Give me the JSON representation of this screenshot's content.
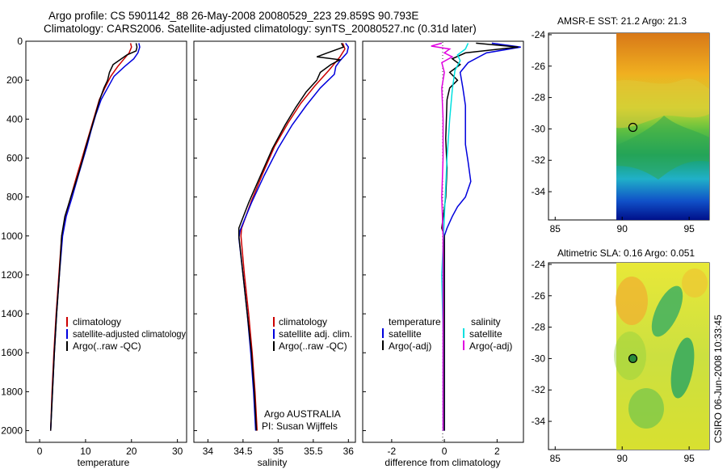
{
  "header": {
    "line1": "Argo profile: CS 5901142_88 26-May-2008 20080529_223 29.859S 90.793E",
    "line2": "Climatology: CARS2006. Satellite-adjusted climatology: synTS_20080527.nc (0.31d later)"
  },
  "colors": {
    "climatology": "#cc0000",
    "satellite": "#0000dd",
    "argo": "#000000",
    "sat_cyan": "#00e0e0",
    "argo_magenta": "#e000e0"
  },
  "chart_data": [
    {
      "id": "temperature",
      "type": "line",
      "xlabel": "temperature",
      "xlim": [
        -3,
        32
      ],
      "ylim": [
        2060,
        0
      ],
      "xticks": [
        0,
        10,
        20,
        30
      ],
      "yticks": [
        0,
        200,
        400,
        600,
        800,
        1000,
        1200,
        1400,
        1600,
        1800,
        2000
      ],
      "legend": [
        "climatology",
        "satellite-adjusted climatology",
        "Argo(..raw -QC)"
      ],
      "series": [
        {
          "name": "climatology",
          "color_key": "climatology",
          "points": [
            [
              19.8,
              10
            ],
            [
              20.0,
              30
            ],
            [
              19.5,
              60
            ],
            [
              18.4,
              90
            ],
            [
              17.0,
              130
            ],
            [
              15.5,
              180
            ],
            [
              14.2,
              240
            ],
            [
              13.0,
              300
            ],
            [
              12.0,
              380
            ],
            [
              11.0,
              460
            ],
            [
              10.0,
              540
            ],
            [
              9.0,
              620
            ],
            [
              8.0,
              700
            ],
            [
              6.8,
              800
            ],
            [
              5.6,
              900
            ],
            [
              4.8,
              1000
            ],
            [
              4.2,
              1200
            ],
            [
              3.6,
              1400
            ],
            [
              3.1,
              1600
            ],
            [
              2.7,
              1800
            ],
            [
              2.4,
              2000
            ]
          ]
        },
        {
          "name": "satellite-adjusted climatology",
          "color_key": "satellite",
          "points": [
            [
              21.6,
              10
            ],
            [
              21.8,
              30
            ],
            [
              21.4,
              60
            ],
            [
              20.5,
              90
            ],
            [
              18.5,
              130
            ],
            [
              16.2,
              180
            ],
            [
              14.8,
              240
            ],
            [
              13.4,
              300
            ],
            [
              12.2,
              380
            ],
            [
              11.2,
              460
            ],
            [
              10.3,
              540
            ],
            [
              9.3,
              620
            ],
            [
              8.3,
              700
            ],
            [
              7.1,
              800
            ],
            [
              5.8,
              900
            ],
            [
              5.0,
              1000
            ],
            [
              4.3,
              1200
            ],
            [
              3.7,
              1400
            ],
            [
              3.2,
              1600
            ],
            [
              2.8,
              1800
            ],
            [
              2.4,
              2000
            ]
          ]
        },
        {
          "name": "Argo(..raw -QC)",
          "color_key": "argo",
          "points": [
            [
              21.0,
              10
            ],
            [
              21.2,
              30
            ],
            [
              21.0,
              50
            ],
            [
              19.0,
              70
            ],
            [
              17.5,
              95
            ],
            [
              16.0,
              120
            ],
            [
              15.2,
              160
            ],
            [
              14.8,
              200
            ],
            [
              14.0,
              240
            ],
            [
              13.1,
              300
            ],
            [
              12.1,
              380
            ],
            [
              11.1,
              460
            ],
            [
              10.1,
              540
            ],
            [
              9.2,
              620
            ],
            [
              8.2,
              700
            ],
            [
              6.8,
              800
            ],
            [
              5.5,
              900
            ],
            [
              4.8,
              1000
            ],
            [
              4.3,
              1200
            ],
            [
              3.7,
              1400
            ],
            [
              3.2,
              1600
            ],
            [
              2.8,
              1800
            ],
            [
              2.4,
              2000
            ]
          ]
        }
      ]
    },
    {
      "id": "salinity",
      "type": "line",
      "xlabel": "salinity",
      "xlim": [
        33.8,
        36.1
      ],
      "ylim": [
        2060,
        0
      ],
      "xticks": [
        34,
        34.5,
        35,
        35.5,
        36
      ],
      "legend": [
        "climatology",
        "satellite adj. clim.",
        "Argo(..raw -QC)"
      ],
      "annotation": [
        "Argo AUSTRALIA",
        "PI: Susan Wijffels"
      ],
      "series": [
        {
          "name": "climatology",
          "color_key": "climatology",
          "points": [
            [
              35.92,
              10
            ],
            [
              35.95,
              40
            ],
            [
              35.88,
              80
            ],
            [
              35.72,
              150
            ],
            [
              35.52,
              230
            ],
            [
              35.32,
              320
            ],
            [
              35.14,
              420
            ],
            [
              34.95,
              540
            ],
            [
              34.78,
              680
            ],
            [
              34.62,
              820
            ],
            [
              34.48,
              960
            ],
            [
              34.47,
              1000
            ],
            [
              34.52,
              1200
            ],
            [
              34.58,
              1400
            ],
            [
              34.63,
              1600
            ],
            [
              34.67,
              1800
            ],
            [
              34.7,
              2000
            ]
          ]
        },
        {
          "name": "satellite adj. clim.",
          "color_key": "satellite",
          "points": [
            [
              35.96,
              10
            ],
            [
              36.0,
              30
            ],
            [
              35.98,
              60
            ],
            [
              35.88,
              100
            ],
            [
              35.82,
              130
            ],
            [
              35.8,
              170
            ],
            [
              35.6,
              240
            ],
            [
              35.4,
              330
            ],
            [
              35.2,
              430
            ],
            [
              35.0,
              550
            ],
            [
              34.8,
              690
            ],
            [
              34.62,
              830
            ],
            [
              34.46,
              970
            ],
            [
              34.44,
              1010
            ],
            [
              34.5,
              1200
            ],
            [
              34.56,
              1400
            ],
            [
              34.61,
              1600
            ],
            [
              34.65,
              1800
            ],
            [
              34.68,
              2000
            ]
          ]
        },
        {
          "name": "Argo(..raw -QC)",
          "color_key": "argo",
          "points": [
            [
              35.9,
              10
            ],
            [
              35.93,
              30
            ],
            [
              35.7,
              60
            ],
            [
              35.55,
              80
            ],
            [
              35.88,
              95
            ],
            [
              35.75,
              120
            ],
            [
              35.6,
              160
            ],
            [
              35.55,
              200
            ],
            [
              35.4,
              260
            ],
            [
              35.25,
              340
            ],
            [
              35.1,
              430
            ],
            [
              34.92,
              550
            ],
            [
              34.75,
              690
            ],
            [
              34.58,
              830
            ],
            [
              34.44,
              960
            ],
            [
              34.44,
              1000
            ],
            [
              34.5,
              1200
            ],
            [
              34.56,
              1400
            ],
            [
              34.62,
              1600
            ],
            [
              34.66,
              1800
            ],
            [
              34.69,
              2000
            ]
          ]
        }
      ]
    },
    {
      "id": "difference",
      "type": "line",
      "xlabel": "difference from climatology",
      "xlim": [
        -3.1,
        3
      ],
      "ylim": [
        2060,
        0
      ],
      "xticks": [
        -2,
        0,
        2
      ],
      "legend_temperature": {
        "title": "temperature",
        "items": [
          "satellite",
          "Argo(-adj)"
        ]
      },
      "legend_salinity": {
        "title": "salinity",
        "items": [
          "satellite",
          "Argo(-adj)"
        ]
      },
      "series": [
        {
          "name": "temperature satellite",
          "color_key": "satellite",
          "points": [
            [
              1.8,
              10
            ],
            [
              2.9,
              30
            ],
            [
              1.6,
              60
            ],
            [
              0.9,
              110
            ],
            [
              0.6,
              160
            ],
            [
              0.7,
              240
            ],
            [
              0.8,
              330
            ],
            [
              0.8,
              420
            ],
            [
              0.8,
              530
            ],
            [
              0.9,
              620
            ],
            [
              1.0,
              720
            ],
            [
              0.8,
              800
            ],
            [
              0.5,
              850
            ],
            [
              0.3,
              900
            ],
            [
              0.1,
              960
            ],
            [
              0.0,
              1000
            ],
            [
              0.0,
              2000
            ]
          ]
        },
        {
          "name": "temperature Argo(-adj)",
          "color_key": "argo",
          "points": [
            [
              1.2,
              10
            ],
            [
              2.8,
              30
            ],
            [
              0.8,
              60
            ],
            [
              0.3,
              90
            ],
            [
              0.6,
              120
            ],
            [
              0.2,
              160
            ],
            [
              0.5,
              200
            ],
            [
              0.2,
              240
            ],
            [
              0.1,
              300
            ],
            [
              0.05,
              500
            ],
            [
              0.1,
              650
            ],
            [
              0.05,
              800
            ],
            [
              -0.1,
              960
            ],
            [
              0.0,
              1000
            ],
            [
              0.0,
              2000
            ]
          ]
        },
        {
          "name": "salinity satellite",
          "color_key": "sat_cyan",
          "points": [
            [
              0.9,
              10
            ],
            [
              0.8,
              40
            ],
            [
              0.5,
              70
            ],
            [
              0.6,
              100
            ],
            [
              0.4,
              150
            ],
            [
              0.3,
              250
            ],
            [
              0.2,
              400
            ],
            [
              0.1,
              600
            ],
            [
              0.0,
              900
            ],
            [
              -0.1,
              1200
            ],
            [
              -0.05,
              1500
            ],
            [
              -0.05,
              2000
            ]
          ]
        },
        {
          "name": "salinity Argo(-adj)",
          "color_key": "argo_magenta",
          "points": [
            [
              -0.1,
              10
            ],
            [
              -0.5,
              25
            ],
            [
              0.2,
              40
            ],
            [
              0.0,
              60
            ],
            [
              0.3,
              80
            ],
            [
              -0.1,
              110
            ],
            [
              0.0,
              160
            ],
            [
              -0.1,
              240
            ],
            [
              -0.05,
              400
            ],
            [
              -0.05,
              600
            ],
            [
              -0.1,
              800
            ],
            [
              -0.05,
              1000
            ],
            [
              -0.05,
              2000
            ]
          ]
        }
      ]
    },
    {
      "id": "sst_map",
      "type": "heatmap",
      "title": "AMSR-E SST: 21.2 Argo: 21.3",
      "xlim": [
        84.5,
        96.5
      ],
      "ylim": [
        -35.8,
        -23.9
      ],
      "xticks": [
        85,
        90,
        95
      ],
      "yticks": [
        -24,
        -26,
        -28,
        -30,
        -32,
        -34
      ],
      "data_xmin": 90,
      "marker": [
        90.8,
        -29.9
      ]
    },
    {
      "id": "sla_map",
      "type": "heatmap",
      "title": "Altimetric SLA: 0.16 Argo: 0.051",
      "xlim": [
        84.5,
        96.5
      ],
      "ylim": [
        -35.8,
        -23.9
      ],
      "xticks": [
        85,
        90,
        95
      ],
      "yticks": [
        -24,
        -26,
        -28,
        -30,
        -32,
        -34
      ],
      "data_xmin": 90,
      "marker": [
        90.8,
        -30.0
      ]
    }
  ],
  "side_label": "CSIRO 06-Jun-2008 10:33:45"
}
